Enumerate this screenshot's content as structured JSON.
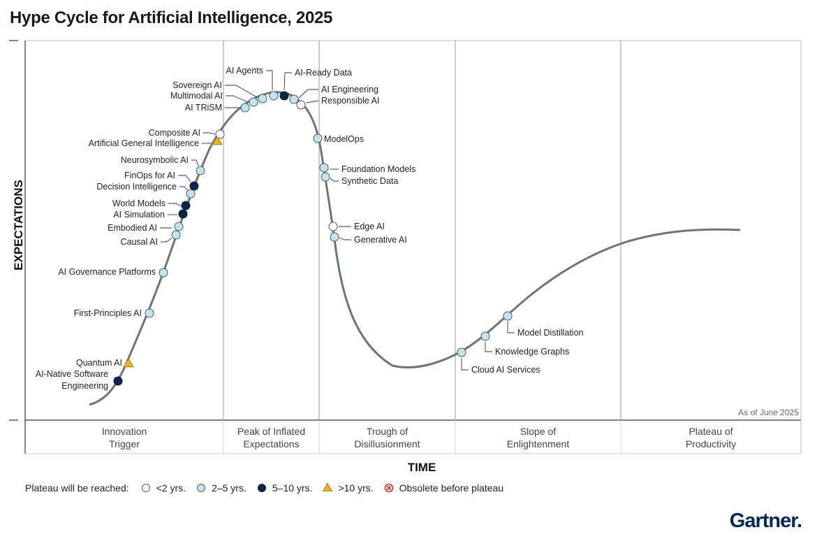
{
  "chart_data": {
    "type": "hype-cycle",
    "title": "Hype Cycle for Artificial Intelligence, 2025",
    "xlabel": "TIME",
    "ylabel": "EXPECTATIONS",
    "as_of": "As of June 2025",
    "phases": [
      [
        "Innovation",
        "Trigger"
      ],
      [
        "Peak of Inflated",
        "Expectations"
      ],
      [
        "Trough of",
        "Disillusionment"
      ],
      [
        "Slope of",
        "Enlightenment"
      ],
      [
        "Plateau of",
        "Productivity"
      ]
    ],
    "legend": {
      "prefix": "Plateau will be reached:",
      "items": [
        {
          "key": "lt2",
          "label": "<2 yrs."
        },
        {
          "key": "2to5",
          "label": "2–5 yrs."
        },
        {
          "key": "5to10",
          "label": "5–10 yrs."
        },
        {
          "key": "gt10",
          "label": ">10 yrs."
        },
        {
          "key": "obsolete",
          "label": "Obsolete before plateau"
        }
      ]
    },
    "colors": {
      "lt2": "#ffffff",
      "2to5": "#c3e3f1",
      "5to10": "#0b2545",
      "gt10": "#f2b51d",
      "obsolete": "#d32f2f",
      "curve": "#6d7572",
      "gridline": "#9a9a9a"
    },
    "technologies": [
      {
        "name": "AI-Native Software Engineering",
        "lines": [
          "AI-Native Software",
          "Engineering"
        ],
        "plateau": "5to10"
      },
      {
        "name": "Quantum AI",
        "plateau": "gt10"
      },
      {
        "name": "First-Principles AI",
        "plateau": "2to5"
      },
      {
        "name": "AI Governance Platforms",
        "plateau": "2to5"
      },
      {
        "name": "Causal AI",
        "plateau": "2to5"
      },
      {
        "name": "Embodied AI",
        "plateau": "2to5"
      },
      {
        "name": "AI Simulation",
        "plateau": "5to10"
      },
      {
        "name": "World Models",
        "plateau": "5to10"
      },
      {
        "name": "Decision Intelligence",
        "plateau": "2to5"
      },
      {
        "name": "FinOps for AI",
        "plateau": "5to10"
      },
      {
        "name": "Neurosymbolic AI",
        "plateau": "2to5"
      },
      {
        "name": "Artificial General Intelligence",
        "plateau": "gt10"
      },
      {
        "name": "Composite AI",
        "plateau": "lt2"
      },
      {
        "name": "AI TRiSM",
        "plateau": "2to5"
      },
      {
        "name": "Multimodal AI",
        "plateau": "2to5"
      },
      {
        "name": "Sovereign AI",
        "plateau": "2to5"
      },
      {
        "name": "AI Agents",
        "plateau": "2to5"
      },
      {
        "name": "AI-Ready Data",
        "plateau": "5to10"
      },
      {
        "name": "AI Engineering",
        "plateau": "2to5"
      },
      {
        "name": "Responsible AI",
        "plateau": "lt2"
      },
      {
        "name": "ModelOps",
        "plateau": "2to5"
      },
      {
        "name": "Foundation Models",
        "plateau": "2to5"
      },
      {
        "name": "Synthetic Data",
        "plateau": "2to5"
      },
      {
        "name": "Edge AI",
        "plateau": "lt2"
      },
      {
        "name": "Generative AI",
        "plateau": "2to5"
      },
      {
        "name": "Cloud AI Services",
        "plateau": "2to5"
      },
      {
        "name": "Knowledge Graphs",
        "plateau": "2to5"
      },
      {
        "name": "Model Distillation",
        "plateau": "2to5"
      }
    ]
  },
  "brand": {
    "logo": "Gartner."
  }
}
